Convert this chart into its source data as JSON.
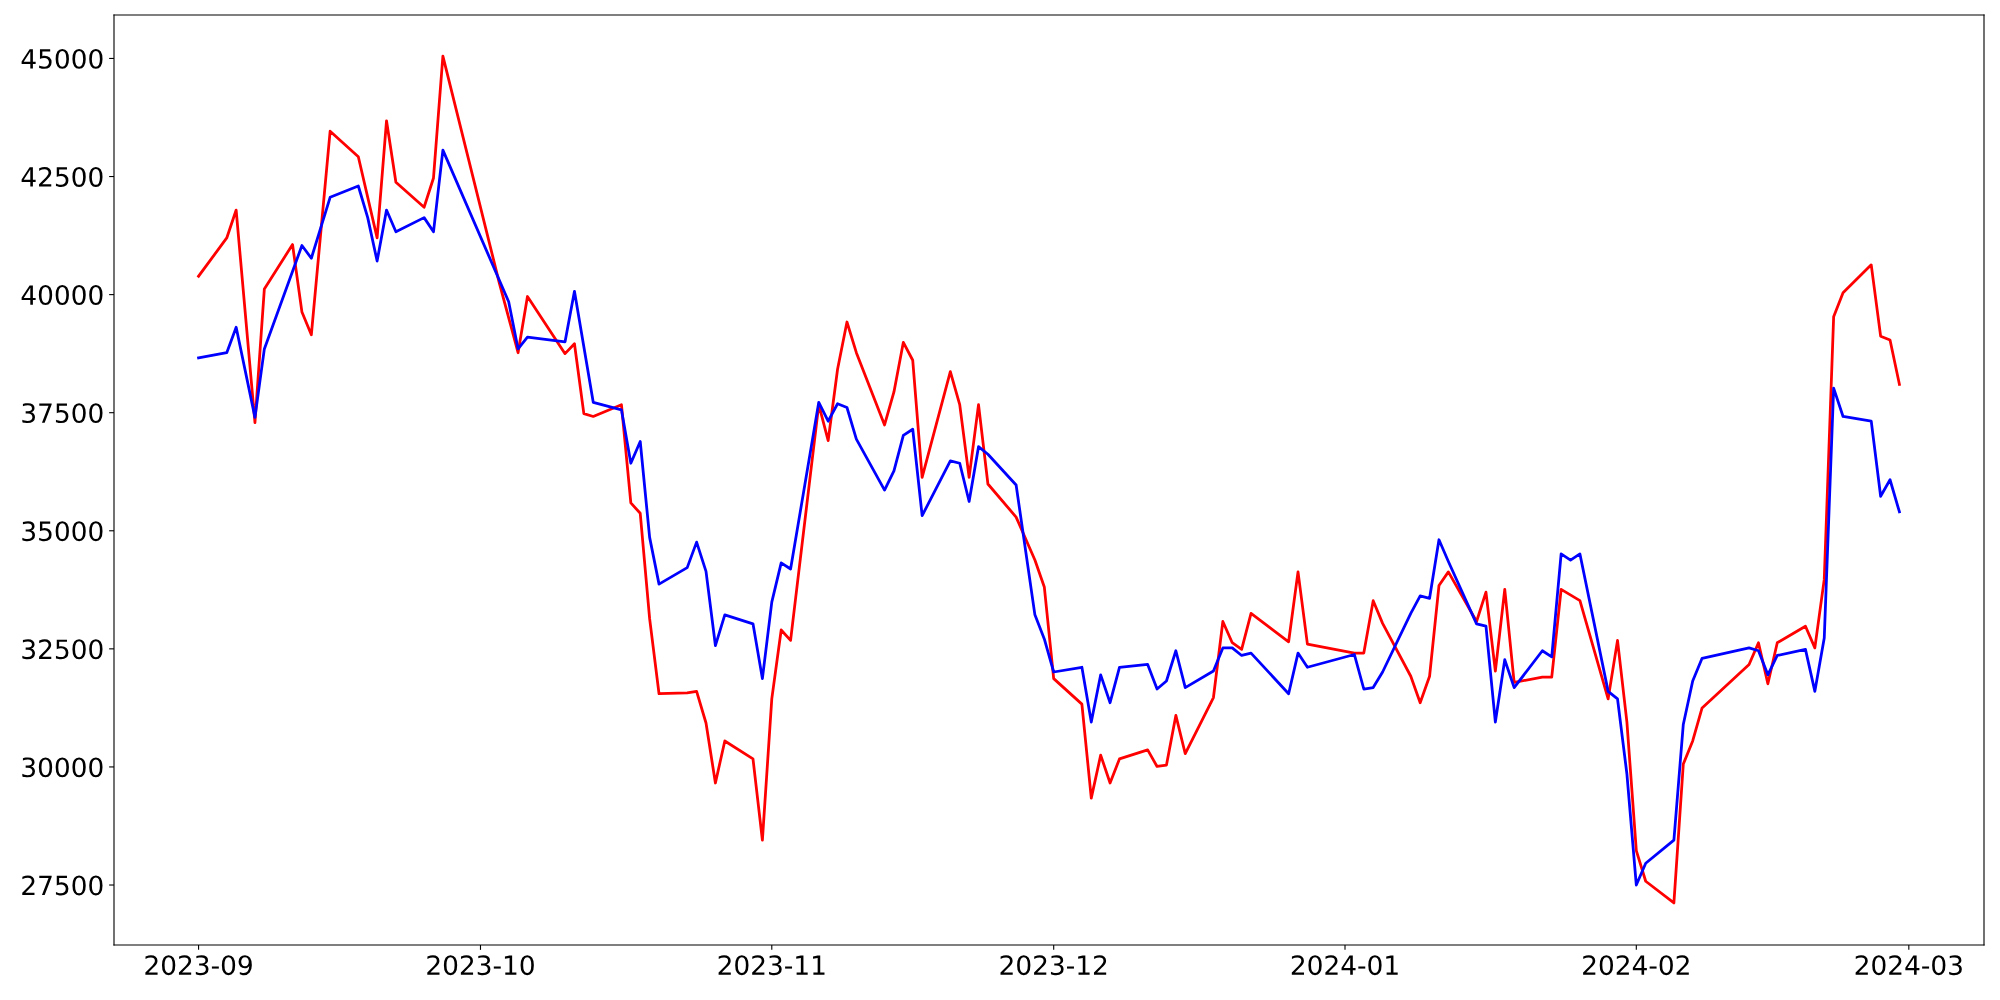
{
  "chart_data": {
    "type": "line",
    "xlim": [
      "2023-08-23",
      "2024-03-09"
    ],
    "ylim": [
      26230,
      45920
    ],
    "xticks": [
      {
        "value": "2023-09-01",
        "label": "2023-09"
      },
      {
        "value": "2023-10-01",
        "label": "2023-10"
      },
      {
        "value": "2023-11-01",
        "label": "2023-11"
      },
      {
        "value": "2023-12-01",
        "label": "2023-12"
      },
      {
        "value": "2024-01-01",
        "label": "2024-01"
      },
      {
        "value": "2024-02-01",
        "label": "2024-02"
      },
      {
        "value": "2024-03-01",
        "label": "2024-03"
      }
    ],
    "yticks": [
      27500,
      30000,
      32500,
      35000,
      37500,
      40000,
      42500,
      45000
    ],
    "grid": false,
    "legend": false,
    "line_style": "solid",
    "series": [
      {
        "color": "#ff0000",
        "x": [
          "2023-09-01",
          "2023-09-04",
          "2023-09-05",
          "2023-09-07",
          "2023-09-08",
          "2023-09-11",
          "2023-09-12",
          "2023-09-13",
          "2023-09-15",
          "2023-09-18",
          "2023-09-20",
          "2023-09-21",
          "2023-09-22",
          "2023-09-25",
          "2023-09-26",
          "2023-09-27",
          "2023-10-03",
          "2023-10-05",
          "2023-10-06",
          "2023-10-10",
          "2023-10-11",
          "2023-10-12",
          "2023-10-13",
          "2023-10-16",
          "2023-10-17",
          "2023-10-18",
          "2023-10-19",
          "2023-10-20",
          "2023-10-23",
          "2023-10-24",
          "2023-10-25",
          "2023-10-26",
          "2023-10-27",
          "2023-10-30",
          "2023-10-31",
          "2023-11-01",
          "2023-11-02",
          "2023-11-03",
          "2023-11-06",
          "2023-11-07",
          "2023-11-08",
          "2023-11-09",
          "2023-11-10",
          "2023-11-13",
          "2023-11-14",
          "2023-11-15",
          "2023-11-16",
          "2023-11-17",
          "2023-11-20",
          "2023-11-21",
          "2023-11-22",
          "2023-11-23",
          "2023-11-24",
          "2023-11-27",
          "2023-11-29",
          "2023-11-30",
          "2023-12-01",
          "2023-12-04",
          "2023-12-05",
          "2023-12-06",
          "2023-12-07",
          "2023-12-08",
          "2023-12-11",
          "2023-12-12",
          "2023-12-13",
          "2023-12-14",
          "2023-12-15",
          "2023-12-18",
          "2023-12-19",
          "2023-12-20",
          "2023-12-21",
          "2023-12-22",
          "2023-12-26",
          "2023-12-27",
          "2023-12-28",
          "2024-01-02",
          "2024-01-03",
          "2024-01-04",
          "2024-01-05",
          "2024-01-08",
          "2024-01-09",
          "2024-01-10",
          "2024-01-11",
          "2024-01-12",
          "2024-01-15",
          "2024-01-16",
          "2024-01-17",
          "2024-01-18",
          "2024-01-19",
          "2024-01-22",
          "2024-01-23",
          "2024-01-24",
          "2024-01-26",
          "2024-01-29",
          "2024-01-30",
          "2024-01-31",
          "2024-02-01",
          "2024-02-02",
          "2024-02-05",
          "2024-02-06",
          "2024-02-07",
          "2024-02-08",
          "2024-02-13",
          "2024-02-14",
          "2024-02-15",
          "2024-02-16",
          "2024-02-19",
          "2024-02-20",
          "2024-02-21",
          "2024-02-22",
          "2024-02-23",
          "2024-02-26",
          "2024-02-27",
          "2024-02-28",
          "2024-02-29"
        ],
        "values": [
          40390,
          41200,
          41790,
          37290,
          40120,
          41060,
          39630,
          39150,
          43460,
          42920,
          41200,
          43680,
          42380,
          41850,
          42470,
          45050,
          40250,
          38770,
          39960,
          38750,
          38960,
          37480,
          37420,
          37670,
          35590,
          35370,
          33140,
          31550,
          31570,
          31600,
          30930,
          29660,
          30550,
          30170,
          28450,
          31440,
          32900,
          32680,
          37670,
          36910,
          38420,
          39420,
          38770,
          37240,
          37940,
          38990,
          38610,
          36130,
          38370,
          37670,
          36130,
          37670,
          35990,
          35290,
          34380,
          33810,
          31870,
          31330,
          29340,
          30250,
          29660,
          30170,
          30360,
          30010,
          30040,
          31090,
          30280,
          31470,
          33080,
          32630,
          32490,
          33250,
          32650,
          34130,
          32600,
          32410,
          32410,
          33520,
          33040,
          31920,
          31360,
          31920,
          33840,
          34130,
          33080,
          33700,
          32030,
          33760,
          31790,
          31900,
          31900,
          33760,
          33520,
          31440,
          32680,
          30950,
          28230,
          27580,
          27120,
          30060,
          30550,
          31250,
          32170,
          32630,
          31760,
          32630,
          32980,
          32520,
          33970,
          39530,
          40040,
          40630,
          39120,
          39040,
          38100
        ]
      },
      {
        "color": "#0000ff",
        "x": [
          "2023-09-01",
          "2023-09-04",
          "2023-09-05",
          "2023-09-07",
          "2023-09-08",
          "2023-09-12",
          "2023-09-13",
          "2023-09-15",
          "2023-09-18",
          "2023-09-19",
          "2023-09-20",
          "2023-09-21",
          "2023-09-22",
          "2023-09-25",
          "2023-09-26",
          "2023-09-27",
          "2023-10-04",
          "2023-10-05",
          "2023-10-06",
          "2023-10-10",
          "2023-10-11",
          "2023-10-13",
          "2023-10-16",
          "2023-10-17",
          "2023-10-18",
          "2023-10-19",
          "2023-10-20",
          "2023-10-23",
          "2023-10-24",
          "2023-10-25",
          "2023-10-26",
          "2023-10-27",
          "2023-10-30",
          "2023-10-31",
          "2023-11-01",
          "2023-11-02",
          "2023-11-03",
          "2023-11-06",
          "2023-11-07",
          "2023-11-08",
          "2023-11-09",
          "2023-11-10",
          "2023-11-13",
          "2023-11-14",
          "2023-11-15",
          "2023-11-16",
          "2023-11-17",
          "2023-11-20",
          "2023-11-21",
          "2023-11-22",
          "2023-11-23",
          "2023-11-24",
          "2023-11-27",
          "2023-11-29",
          "2023-11-30",
          "2023-12-01",
          "2023-12-04",
          "2023-12-05",
          "2023-12-06",
          "2023-12-07",
          "2023-12-08",
          "2023-12-11",
          "2023-12-12",
          "2023-12-13",
          "2023-12-14",
          "2023-12-15",
          "2023-12-18",
          "2023-12-19",
          "2023-12-20",
          "2023-12-21",
          "2023-12-22",
          "2023-12-26",
          "2023-12-27",
          "2023-12-28",
          "2024-01-02",
          "2024-01-03",
          "2024-01-04",
          "2024-01-05",
          "2024-01-08",
          "2024-01-09",
          "2024-01-10",
          "2024-01-11",
          "2024-01-12",
          "2024-01-15",
          "2024-01-16",
          "2024-01-17",
          "2024-01-18",
          "2024-01-19",
          "2024-01-22",
          "2024-01-23",
          "2024-01-24",
          "2024-01-25",
          "2024-01-26",
          "2024-01-29",
          "2024-01-30",
          "2024-01-31",
          "2024-02-01",
          "2024-02-02",
          "2024-02-05",
          "2024-02-06",
          "2024-02-07",
          "2024-02-08",
          "2024-02-13",
          "2024-02-14",
          "2024-02-15",
          "2024-02-16",
          "2024-02-19",
          "2024-02-20",
          "2024-02-21",
          "2024-02-22",
          "2024-02-23",
          "2024-02-26",
          "2024-02-27",
          "2024-02-28",
          "2024-02-29"
        ],
        "values": [
          38660,
          38770,
          39310,
          37400,
          38850,
          41040,
          40770,
          42060,
          42300,
          41630,
          40710,
          41790,
          41330,
          41630,
          41330,
          43060,
          39850,
          38850,
          39100,
          39000,
          40070,
          37720,
          37560,
          36430,
          36890,
          34860,
          33870,
          34220,
          34760,
          34140,
          32570,
          33220,
          33030,
          31870,
          33490,
          34320,
          34190,
          37720,
          37320,
          37690,
          37610,
          36940,
          35860,
          36270,
          37020,
          37150,
          35320,
          36480,
          36430,
          35620,
          36780,
          36620,
          35970,
          33220,
          32710,
          32010,
          32110,
          30950,
          31950,
          31360,
          32110,
          32170,
          31650,
          31820,
          32460,
          31680,
          32030,
          32520,
          32520,
          32360,
          32410,
          31550,
          32410,
          32110,
          32380,
          31650,
          31680,
          32010,
          33250,
          33620,
          33570,
          34810,
          34350,
          33030,
          32980,
          30950,
          32270,
          31680,
          32460,
          32330,
          34510,
          34380,
          34510,
          31600,
          31440,
          29850,
          27500,
          27960,
          28450,
          30900,
          31820,
          32300,
          32520,
          32460,
          31950,
          32360,
          32490,
          31600,
          32730,
          38020,
          37420,
          37320,
          35730,
          36080,
          35400
        ]
      }
    ]
  }
}
